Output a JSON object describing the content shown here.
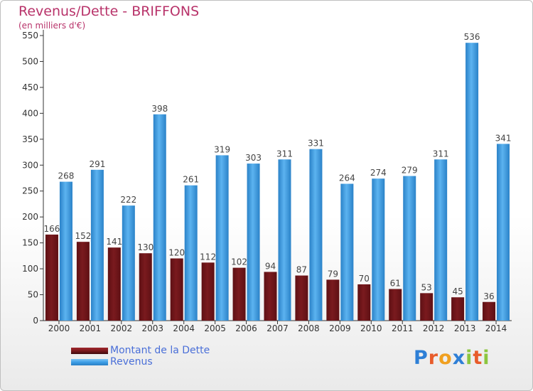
{
  "header": {
    "title": "Revenus/Dette - BRIFFONS",
    "subtitle": "(en milliers d'€)"
  },
  "legend": {
    "debt_label": "Montant de la Dette",
    "revenue_label": "Revenus"
  },
  "brand": {
    "letters": [
      "P",
      "r",
      "o",
      "x",
      "i",
      "t",
      "i"
    ],
    "colors": [
      "#2e7fd6",
      "#e85c2b",
      "#f0a020",
      "#2e7fd6",
      "#8cc63f",
      "#e85c2b",
      "#8cc63f"
    ]
  },
  "colors": {
    "debt": "#7a1a1e",
    "revenue": "#3d9ee6"
  },
  "chart_data": {
    "type": "bar",
    "title": "Revenus/Dette - BRIFFONS",
    "subtitle": "(en milliers d'€)",
    "categories": [
      "2000",
      "2001",
      "2002",
      "2003",
      "2004",
      "2005",
      "2006",
      "2007",
      "2008",
      "2009",
      "2010",
      "2011",
      "2012",
      "2013",
      "2014"
    ],
    "series": [
      {
        "name": "Montant de la Dette",
        "values": [
          166,
          152,
          141,
          130,
          120,
          112,
          102,
          94,
          87,
          79,
          70,
          61,
          53,
          45,
          36
        ]
      },
      {
        "name": "Revenus",
        "values": [
          268,
          291,
          222,
          398,
          261,
          319,
          303,
          311,
          331,
          264,
          274,
          279,
          311,
          536,
          341
        ]
      }
    ],
    "ylim": [
      0,
      550
    ],
    "yticks": [
      0,
      50,
      100,
      150,
      200,
      250,
      300,
      350,
      400,
      450,
      500,
      550
    ],
    "grid": false,
    "legend_position": "bottom-left"
  }
}
